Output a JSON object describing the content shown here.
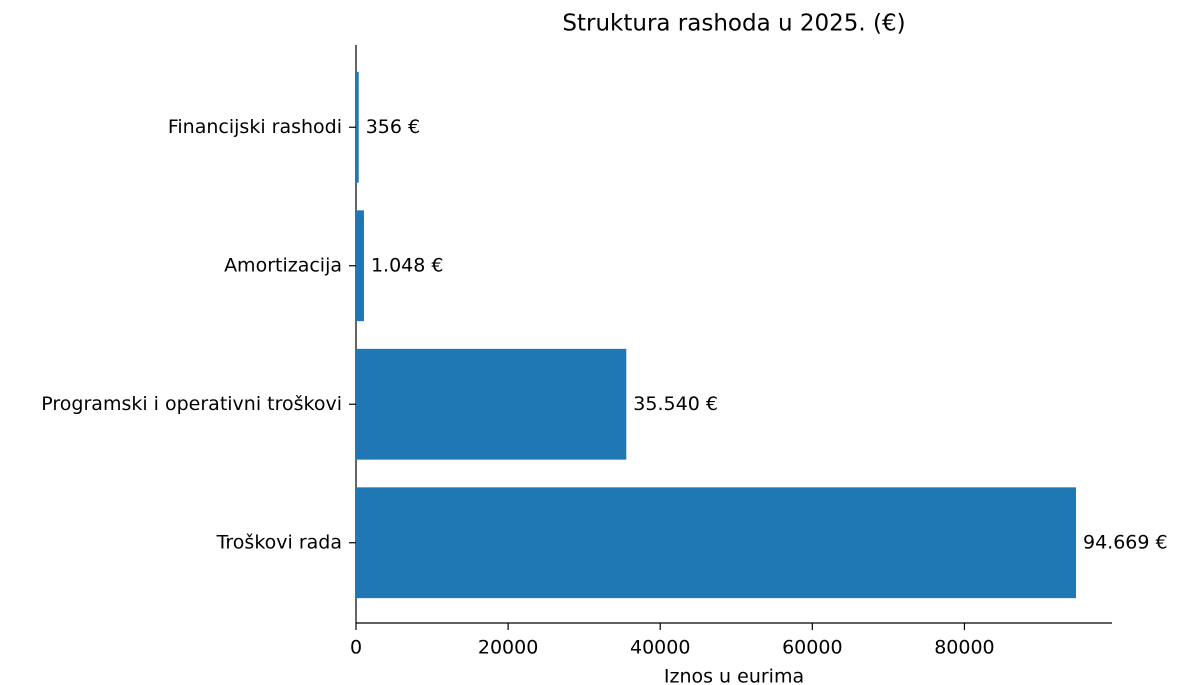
{
  "chart_data": {
    "type": "barh",
    "title": "Struktura rashoda u 2025. (€)",
    "x_label": "Iznos u eurima",
    "categories": [
      "Financijski rashodi",
      "Amortizacija",
      "Programski i operativni troškovi",
      "Troškovi rada"
    ],
    "values": [
      356,
      1048,
      35540,
      94669
    ],
    "value_labels": [
      "356 €",
      "1.048 €",
      "35.540 €",
      "94.669 €"
    ],
    "color": "#1f77b4",
    "xlim": [
      0,
      99402
    ],
    "xticks": [
      0,
      20000,
      40000,
      60000,
      80000
    ],
    "grid": false
  }
}
